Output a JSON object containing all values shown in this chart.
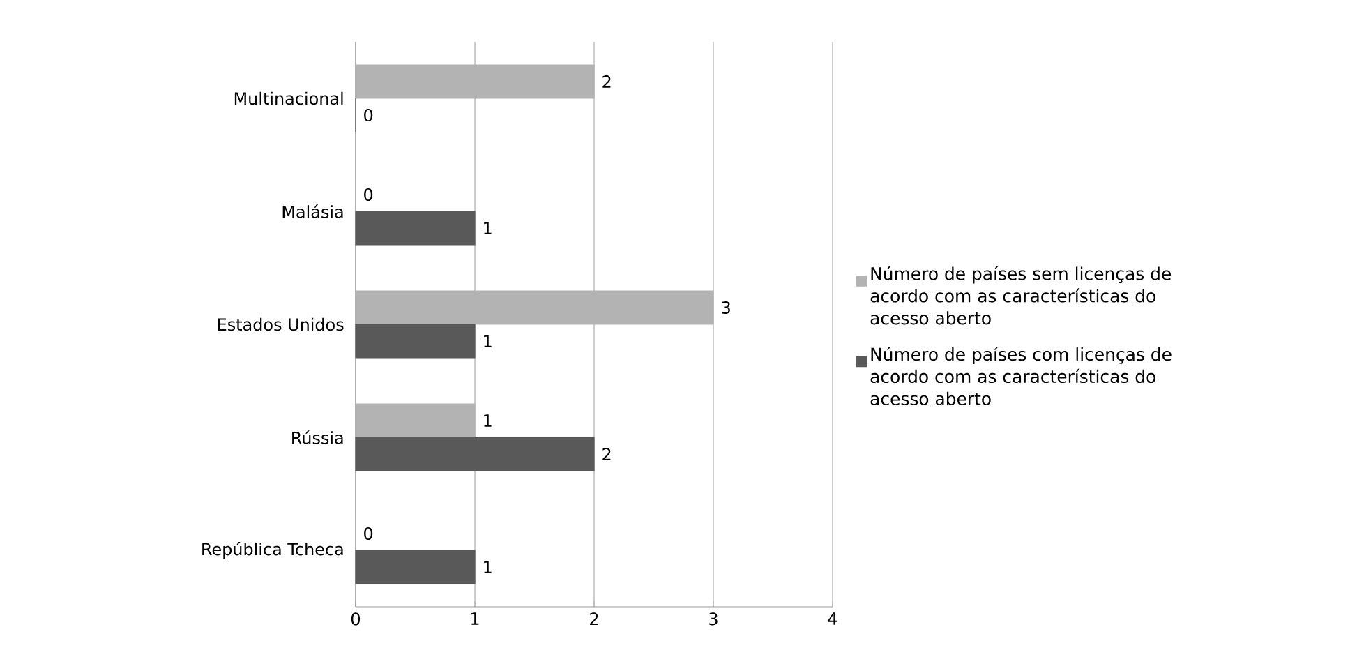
{
  "chart_data": {
    "type": "bar",
    "orientation": "horizontal",
    "categories": [
      "Multinacional",
      "Malásia",
      "Estados Unidos",
      "Rússia",
      "República Tcheca"
    ],
    "series": [
      {
        "name": "Número de países  sem licenças de acordo com as características do acesso aberto",
        "color": "#b3b3b3",
        "values": [
          2,
          0,
          3,
          1,
          0
        ]
      },
      {
        "name": "Número de países com licenças de acordo com as características do acesso aberto",
        "color": "#595959",
        "values": [
          0,
          1,
          1,
          2,
          1
        ]
      }
    ],
    "xlim": [
      0,
      4
    ],
    "xticks": [
      0,
      1,
      2,
      3,
      4
    ],
    "grid": "x",
    "legend": "right",
    "data_labels": true
  }
}
